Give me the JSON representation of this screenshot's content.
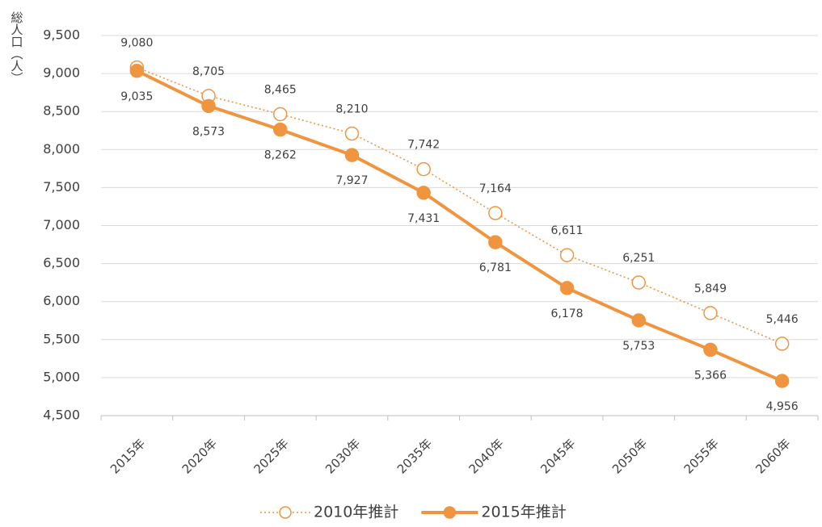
{
  "chart_data": {
    "type": "line",
    "y_label": "総人口（人）",
    "categories": [
      "2015年",
      "2020年",
      "2025年",
      "2030年",
      "2035年",
      "2040年",
      "2045年",
      "2050年",
      "2055年",
      "2060年"
    ],
    "series": [
      {
        "name": "2010年推計",
        "color": "#f0953f",
        "line_style": "dotted",
        "marker": "open",
        "values": [
          9080,
          8705,
          8465,
          8210,
          7742,
          7164,
          6611,
          6251,
          5849,
          5446
        ],
        "value_labels": [
          "9,080",
          "8,705",
          "8,465",
          "8,210",
          "7,742",
          "7,164",
          "6,611",
          "6,251",
          "5,849",
          "5,446"
        ]
      },
      {
        "name": "2015年推計",
        "color": "#f0953f",
        "line_style": "solid",
        "marker": "filled",
        "values": [
          9035,
          8573,
          8262,
          7927,
          7431,
          6781,
          6178,
          5753,
          5366,
          4956
        ],
        "value_labels": [
          "9,035",
          "8,573",
          "8,262",
          "7,927",
          "7,431",
          "6,781",
          "6,178",
          "5,753",
          "5,366",
          "4,956"
        ]
      }
    ],
    "ylim": [
      4500,
      9500
    ],
    "yticks": [
      {
        "value": 4500,
        "label": "4,500"
      },
      {
        "value": 5000,
        "label": "5,000"
      },
      {
        "value": 5500,
        "label": "5,500"
      },
      {
        "value": 6000,
        "label": "6,000"
      },
      {
        "value": 6500,
        "label": "6,500"
      },
      {
        "value": 7000,
        "label": "7,000"
      },
      {
        "value": 7500,
        "label": "7,500"
      },
      {
        "value": 8000,
        "label": "8,000"
      },
      {
        "value": 8500,
        "label": "8,500"
      },
      {
        "value": 9000,
        "label": "9,000"
      },
      {
        "value": 9500,
        "label": "9,500"
      }
    ],
    "grid": true,
    "legend": "bottom"
  }
}
